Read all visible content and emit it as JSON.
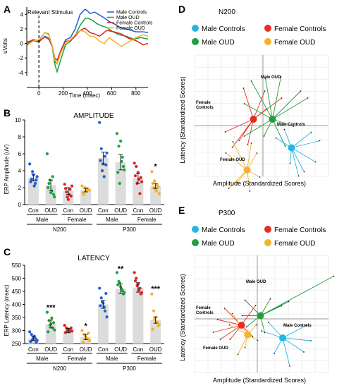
{
  "panel_labels": {
    "a": "A",
    "b": "B",
    "c": "C",
    "d": "D",
    "e": "E"
  },
  "colors": {
    "male_con": "#1f5fd6",
    "male_oud": "#1aa33a",
    "female_con": "#e02020",
    "female_oud": "#f0b22a",
    "d_male_con": "#27b5e0",
    "d_male_oud": "#1f9e3a",
    "d_female_con": "#e62e24",
    "d_female_oud": "#f2b52a",
    "bar": "#dcdcdc"
  },
  "panel_a": {
    "ylabel": "uVolts",
    "xlabel": "Time (msec)",
    "stimulus_label": "Relevant Stimulus",
    "legend": [
      "Male Controls",
      "Male OUD",
      "Female Controls",
      "Female OUD"
    ],
    "xticks": [
      "0",
      "200",
      "400",
      "600",
      "800"
    ],
    "yticks": [
      "4",
      "2",
      "0",
      "-2",
      "-4"
    ]
  },
  "panel_b": {
    "title": "AMPLITUDE",
    "ylabel": "ERP Amplitude (uV)",
    "yticks": [
      "0",
      "2",
      "4",
      "6",
      "8",
      "10"
    ],
    "star": "*"
  },
  "panel_c": {
    "title": "LATENCY",
    "ylabel": "ERP Latency (msec)",
    "yticks": [
      "250",
      "300",
      "350",
      "400",
      "450",
      "500",
      "550"
    ],
    "stars": [
      "***",
      "*",
      "**",
      "***"
    ]
  },
  "group_labels": {
    "con": "Con",
    "oud": "OUD",
    "male": "Male",
    "female": "Female",
    "n200": "N200",
    "p300": "P300"
  },
  "scatter_common": {
    "xlabel": "Amplitude (Standardized Scores)",
    "ylabel": "Latency (Standardized Scores)",
    "legend": [
      "Male Controls",
      "Female Controls",
      "Male OUD",
      "Female OUD"
    ]
  },
  "panel_d": {
    "title": "N200",
    "labels": {
      "male_oud": "Male OUD",
      "female_con_1": "Female",
      "female_con_2": "Controls",
      "male_con": "Male Controls",
      "female_oud": "Female OUD"
    }
  },
  "panel_e": {
    "title": "P300",
    "labels": {
      "male_oud": "Male OUD",
      "female_con_1": "Female",
      "female_con_2": "Controls",
      "male_con": "Male Controls",
      "female_oud": "Female OUD"
    }
  },
  "chart_data": [
    {
      "type": "line",
      "ylabel": "uVolts",
      "xlabel": "Time (msec)",
      "xlim": [
        -100,
        900
      ],
      "ylim": [
        -4.5,
        5
      ],
      "series": [
        {
          "name": "Male Controls",
          "x": [
            -100,
            -50,
            0,
            50,
            80,
            110,
            130,
            150,
            180,
            220,
            260,
            300,
            340,
            380,
            400,
            420,
            460,
            500,
            540,
            580,
            620,
            680,
            740,
            800,
            860,
            900
          ],
          "values": [
            0.2,
            0.4,
            0.2,
            1.0,
            0.7,
            -0.5,
            -2.5,
            -2.8,
            -1.0,
            0.5,
            0.8,
            2.0,
            4.0,
            4.7,
            4.5,
            4.1,
            4.3,
            3.9,
            3.5,
            3.0,
            2.7,
            2.1,
            1.9,
            1.6,
            1.6,
            1.5
          ]
        },
        {
          "name": "Male OUD",
          "x": [
            -100,
            -50,
            0,
            50,
            80,
            110,
            130,
            150,
            180,
            220,
            260,
            300,
            340,
            380,
            400,
            440,
            480,
            520,
            560,
            600,
            660,
            720,
            780,
            840,
            900
          ],
          "values": [
            -0.2,
            0.5,
            0.4,
            1.5,
            1.3,
            -0.4,
            -2.8,
            -3.9,
            -2.2,
            -0.2,
            0.3,
            1.1,
            2.5,
            3.4,
            3.5,
            3.2,
            2.7,
            2.4,
            2.2,
            1.7,
            1.2,
            1.0,
            0.6,
            0.8,
            0.6
          ]
        },
        {
          "name": "Female Controls",
          "x": [
            -100,
            -50,
            0,
            50,
            80,
            110,
            130,
            150,
            180,
            220,
            260,
            300,
            340,
            380,
            420,
            460,
            500,
            560,
            620,
            680,
            740,
            800,
            860,
            900
          ],
          "values": [
            0.1,
            0.5,
            0.3,
            0.9,
            0.6,
            -0.3,
            -2.0,
            -2.3,
            -1.0,
            0.3,
            0.4,
            1.0,
            1.8,
            2.1,
            1.5,
            1.3,
            1.0,
            1.8,
            1.6,
            1.3,
            0.7,
            0.4,
            -0.2,
            0.0
          ]
        },
        {
          "name": "Female OUD",
          "x": [
            -100,
            -50,
            0,
            50,
            80,
            110,
            130,
            150,
            180,
            220,
            260,
            300,
            340,
            380,
            420,
            460,
            500,
            540,
            580,
            620,
            680,
            740,
            800,
            860,
            900
          ],
          "values": [
            -0.3,
            0.3,
            0.5,
            1.5,
            1.2,
            -0.4,
            -2.2,
            -2.8,
            -1.3,
            0.1,
            0.5,
            1.2,
            1.8,
            1.6,
            1.0,
            0.9,
            0.3,
            0.0,
            0.8,
            0.3,
            -0.4,
            0.2,
            0.8,
            1.2,
            1.0
          ]
        }
      ]
    },
    {
      "type": "bar",
      "ylabel": "ERP Amplitude (uV)",
      "ylim": [
        0,
        10
      ],
      "categories": [
        "N200 Male Con",
        "N200 Male OUD",
        "N200 Female Con",
        "N200 Female OUD",
        "P300 Male Con",
        "P300 Male OUD",
        "P300 Female Con",
        "P300 Female OUD"
      ],
      "values": [
        3.2,
        2.3,
        1.6,
        1.7,
        5.5,
        5.0,
        3.1,
        2.2
      ],
      "errors": [
        0.4,
        0.6,
        0.4,
        0.2,
        0.7,
        0.9,
        0.6,
        0.3
      ],
      "points": [
        [
          4.8,
          3.0,
          3.5,
          2.5,
          3.3,
          2.7,
          3.9,
          2.2,
          2.9
        ],
        [
          6.0,
          2.5,
          1.4,
          3.3,
          0.9,
          2.0,
          2.9,
          1.6,
          1.2
        ],
        [
          2.4,
          1.5,
          0.6,
          1.8,
          2.2,
          1.9,
          0.9,
          1.2,
          1.0
        ],
        [
          2.2,
          1.2,
          1.6,
          1.9,
          1.7,
          1.4,
          2.0,
          1.6,
          1.8
        ],
        [
          9.7,
          6.6,
          4.8,
          5.7,
          6.1,
          5.2,
          4.0,
          3.3,
          4.7
        ],
        [
          8.4,
          6.9,
          7.5,
          5.6,
          4.1,
          3.8,
          2.5,
          5.1,
          4.5
        ],
        [
          4.9,
          4.5,
          3.8,
          1.3,
          2.7,
          3.4,
          2.5,
          3.0,
          3.2
        ],
        [
          3.9,
          2.0,
          1.8,
          2.3,
          1.3,
          2.5,
          2.8,
          1.6,
          2.1
        ]
      ]
    },
    {
      "type": "bar",
      "ylabel": "ERP Latency (msec)",
      "ylim": [
        250,
        550
      ],
      "categories": [
        "N200 Male Con",
        "N200 Male OUD",
        "N200 Female Con",
        "N200 Female OUD",
        "P300 Male Con",
        "P300 Male OUD",
        "P300 Female Con",
        "P300 Female OUD"
      ],
      "values": [
        270,
        325,
        300,
        275,
        400,
        460,
        465,
        340
      ],
      "errors": [
        8,
        15,
        8,
        10,
        15,
        18,
        18,
        12
      ],
      "points": [
        [
          295,
          285,
          275,
          270,
          262,
          258,
          265,
          278,
          255
        ],
        [
          370,
          338,
          325,
          310,
          302,
          295,
          320,
          348,
          330
        ],
        [
          320,
          310,
          305,
          300,
          298,
          292,
          300,
          295,
          310
        ],
        [
          300,
          285,
          275,
          268,
          262,
          255,
          282,
          270,
          290
        ],
        [
          462,
          425,
          405,
          375,
          352,
          395,
          410,
          390,
          442
        ],
        [
          522,
          488,
          468,
          452,
          445,
          475,
          482,
          460,
          440
        ],
        [
          522,
          500,
          478,
          462,
          445,
          490,
          472,
          455,
          440
        ],
        [
          440,
          375,
          350,
          332,
          322,
          305,
          342,
          330,
          318
        ]
      ]
    },
    {
      "type": "scatter",
      "title": "N200",
      "xlabel": "Amplitude (Standardized Scores)",
      "ylabel": "Latency (Standardized Scores)",
      "series": [
        {
          "name": "Male Controls",
          "center": [
            0.9,
            -0.7
          ]
        },
        {
          "name": "Female Controls",
          "center": [
            -0.3,
            0.2
          ]
        },
        {
          "name": "Male OUD",
          "center": [
            0.3,
            0.2
          ]
        },
        {
          "name": "Female OUD",
          "center": [
            -0.5,
            -1.4
          ]
        }
      ]
    },
    {
      "type": "scatter",
      "title": "P300",
      "xlabel": "Amplitude (Standardized Scores)",
      "ylabel": "Latency (Standardized Scores)",
      "series": [
        {
          "name": "Male Controls",
          "center": [
            0.8,
            -0.6
          ]
        },
        {
          "name": "Female Controls",
          "center": [
            -0.5,
            -0.2
          ]
        },
        {
          "name": "Male OUD",
          "center": [
            0.1,
            0.1
          ]
        },
        {
          "name": "Female OUD",
          "center": [
            -0.3,
            -0.5
          ]
        }
      ]
    }
  ]
}
